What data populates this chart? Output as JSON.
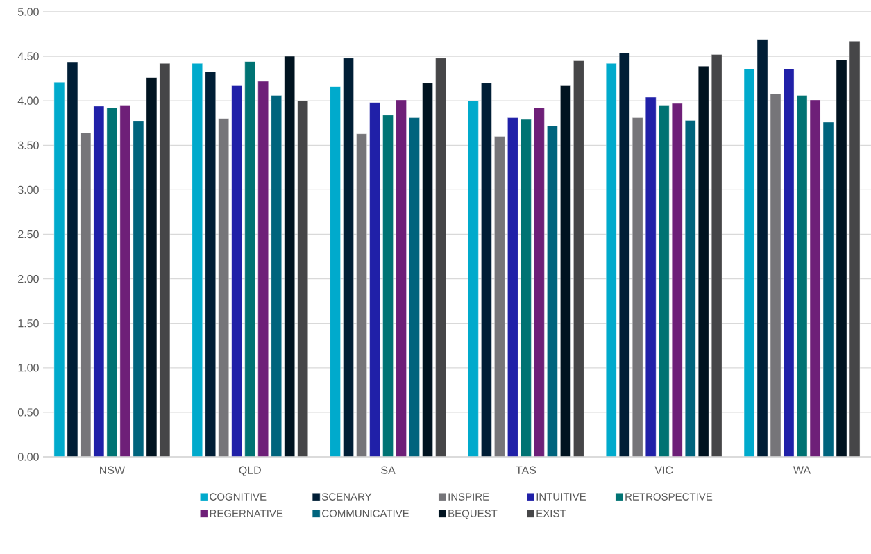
{
  "chart_data": {
    "type": "bar",
    "categories": [
      "NSW",
      "QLD",
      "SA",
      "TAS",
      "VIC",
      "WA"
    ],
    "series": [
      {
        "name": "COGNITIVE",
        "color": "#00aacc",
        "values": [
          4.21,
          4.42,
          4.16,
          4.0,
          4.42,
          4.36
        ]
      },
      {
        "name": "SCENARY",
        "color": "#001e36",
        "values": [
          4.43,
          4.33,
          4.48,
          4.2,
          4.54,
          4.69
        ]
      },
      {
        "name": "INSPIRE",
        "color": "#767579",
        "values": [
          3.64,
          3.8,
          3.63,
          3.6,
          3.81,
          4.08
        ]
      },
      {
        "name": "INTUITIVE",
        "color": "#2020a8",
        "values": [
          3.94,
          4.17,
          3.98,
          3.81,
          4.04,
          4.36
        ]
      },
      {
        "name": "RETROSPECTIVE",
        "color": "#007373",
        "values": [
          3.92,
          4.44,
          3.84,
          3.79,
          3.95,
          4.06
        ]
      },
      {
        "name": "REGERNATIVE",
        "color": "#6e1f78",
        "values": [
          3.95,
          4.22,
          4.01,
          3.92,
          3.97,
          4.01
        ]
      },
      {
        "name": "COMMUNICATIVE",
        "color": "#00647d",
        "values": [
          3.77,
          4.06,
          3.81,
          3.72,
          3.78,
          3.76
        ]
      },
      {
        "name": "BEQUEST",
        "color": "#001320",
        "values": [
          4.26,
          4.5,
          4.2,
          4.17,
          4.39,
          4.46
        ]
      },
      {
        "name": "EXIST",
        "color": "#464648",
        "values": [
          4.42,
          4.0,
          4.48,
          4.45,
          4.52,
          4.67
        ]
      }
    ],
    "ylim": [
      0,
      5
    ],
    "yticks": [
      {
        "value": 0,
        "label": "0.00"
      },
      {
        "value": 0.5,
        "label": "0.50"
      },
      {
        "value": 1,
        "label": "1.00"
      },
      {
        "value": 1.5,
        "label": "1.50"
      },
      {
        "value": 2,
        "label": "2.00"
      },
      {
        "value": 2.5,
        "label": "2.50"
      },
      {
        "value": 3,
        "label": "3.00"
      },
      {
        "value": 3.5,
        "label": "3.50"
      },
      {
        "value": 4,
        "label": "4.00"
      },
      {
        "value": 4.5,
        "label": "4.50"
      },
      {
        "value": 5,
        "label": "5.00"
      }
    ],
    "grid": "y",
    "legend": "bottom"
  }
}
